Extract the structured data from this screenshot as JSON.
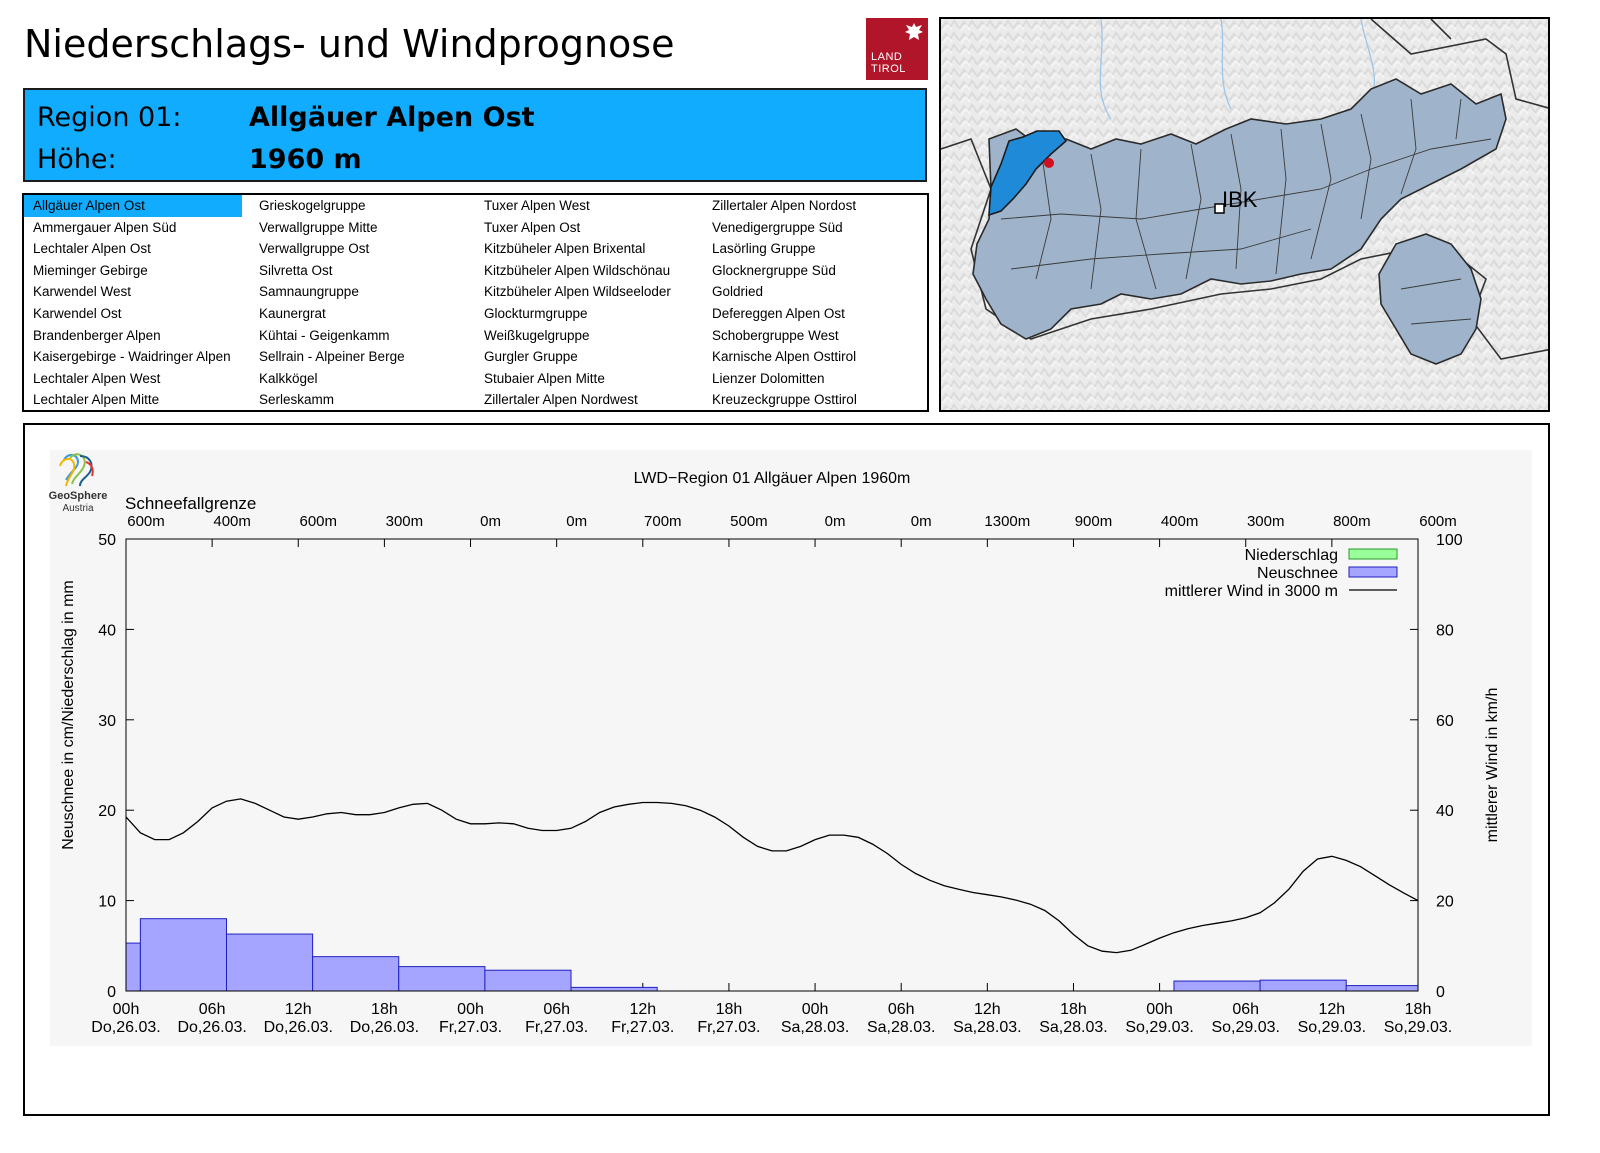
{
  "header": {
    "title": "Niederschlags- und Windprognose",
    "logo_line1": "LAND",
    "logo_line2": "TIROL"
  },
  "region": {
    "region_label": "Region 01:",
    "region_name": "Allgäuer Alpen Ost",
    "height_label": "Höhe:",
    "height_value": "1960 m"
  },
  "region_list": {
    "columns": [
      [
        "Allgäuer Alpen Ost",
        "Ammergauer Alpen Süd",
        "Lechtaler Alpen Ost",
        "Mieminger Gebirge",
        "Karwendel West",
        "Karwendel Ost",
        "Brandenberger Alpen",
        "Kaisergebirge - Waidringer Alpen",
        "Lechtaler Alpen West",
        "Lechtaler Alpen Mitte"
      ],
      [
        "Grieskogelgruppe",
        "Verwallgruppe Mitte",
        "Verwallgruppe Ost",
        "Silvretta Ost",
        "Samnaungruppe",
        "Kaunergrat",
        "Kühtai - Geigenkamm",
        "Sellrain - Alpeiner Berge",
        "Kalkkögel",
        "Serleskamm"
      ],
      [
        "Tuxer Alpen West",
        "Tuxer Alpen Ost",
        "Kitzbüheler Alpen Brixental",
        "Kitzbüheler Alpen Wildschönau",
        "Kitzbüheler Alpen Wildseeloder",
        "Glockturmgruppe",
        "Weißkugelgruppe",
        "Gurgler Gruppe",
        "Stubaier Alpen Mitte",
        "Zillertaler Alpen Nordwest"
      ],
      [
        "Zillertaler Alpen Nordost",
        "Venedigergruppe Süd",
        "Lasörling Gruppe",
        "Glocknergruppe Süd",
        "Goldried",
        "Defereggen Alpen Ost",
        "Schobergruppe West",
        "Karnische Alpen Osttirol",
        "Lienzer Dolomitten",
        "Kreuzeckgruppe Osttirol"
      ]
    ],
    "selected": "Allgäuer Alpen Ost"
  },
  "map": {
    "marker_label": "IBK"
  },
  "provider": {
    "name": "GeoSphere",
    "country": "Austria"
  },
  "colors": {
    "region_highlight": "#12acff",
    "precip": "#99ff99",
    "snow": "#a5a5ff",
    "snow_edge": "#2020c0",
    "wind": "#000000",
    "plot_bg": "#f6f6f6",
    "logo_red": "#b0152a"
  },
  "chart_data": {
    "type": "bar",
    "title": "LWD−Region 01 Allgäuer Alpen 1960m",
    "snowline_title": "Schneefallgrenze",
    "snowline_labels": [
      "600m",
      "400m",
      "600m",
      "300m",
      "0m",
      "0m",
      "700m",
      "500m",
      "0m",
      "0m",
      "1300m",
      "900m",
      "400m",
      "300m",
      "800m",
      "600m"
    ],
    "ylabel": "Neuschnee in cm/Niederschlag in mm",
    "y2label": "mittlerer Wind in km/h",
    "ylim": [
      0,
      50
    ],
    "y2lim": [
      0,
      100
    ],
    "yticks": [
      "0",
      "10",
      "20",
      "30",
      "40",
      "50"
    ],
    "y2ticks": [
      "0",
      "20",
      "40",
      "60",
      "80",
      "100"
    ],
    "x_hours_range": [
      0,
      90
    ],
    "x_tick_hours": [
      "00h",
      "06h",
      "12h",
      "18h",
      "00h",
      "06h",
      "12h",
      "18h",
      "00h",
      "06h",
      "12h",
      "18h",
      "00h",
      "06h",
      "12h",
      "18h"
    ],
    "x_tick_days": [
      "Do,26.03.",
      "Do,26.03.",
      "Do,26.03.",
      "Do,26.03.",
      "Fr,27.03.",
      "Fr,27.03.",
      "Fr,27.03.",
      "Fr,27.03.",
      "Sa,28.03.",
      "Sa,28.03.",
      "Sa,28.03.",
      "Sa,28.03.",
      "So,29.03.",
      "So,29.03.",
      "So,29.03.",
      "So,29.03."
    ],
    "legend": [
      "Niederschlag",
      "Neuschnee",
      "mittlerer Wind in 3000 m"
    ],
    "series": [
      {
        "name": "Neuschnee",
        "bars": [
          {
            "start": 0,
            "end": 1,
            "value": 5.3
          },
          {
            "start": 1,
            "end": 7,
            "value": 8.0
          },
          {
            "start": 7,
            "end": 13,
            "value": 6.3
          },
          {
            "start": 13,
            "end": 19,
            "value": 3.8
          },
          {
            "start": 19,
            "end": 25,
            "value": 2.7
          },
          {
            "start": 25,
            "end": 31,
            "value": 2.3
          },
          {
            "start": 31,
            "end": 37,
            "value": 0.4
          },
          {
            "start": 73,
            "end": 79,
            "value": 1.1
          },
          {
            "start": 79,
            "end": 85,
            "value": 1.2
          },
          {
            "start": 85,
            "end": 90,
            "value": 0.6
          }
        ]
      },
      {
        "name": "Niederschlag",
        "bars": []
      },
      {
        "name": "mittlerer Wind in 3000 m",
        "axis": "right",
        "x": [
          0,
          1,
          2,
          3,
          4,
          5,
          6,
          7,
          8,
          9,
          10,
          11,
          12,
          13,
          14,
          15,
          16,
          17,
          18,
          19,
          20,
          21,
          22,
          23,
          24,
          25,
          26,
          27,
          28,
          29,
          30,
          31,
          32,
          33,
          34,
          35,
          36,
          37,
          38,
          39,
          40,
          41,
          42,
          43,
          44,
          45,
          46,
          47,
          48,
          49,
          50,
          51,
          52,
          53,
          54,
          55,
          56,
          57,
          58,
          59,
          60,
          61,
          62,
          63,
          64,
          65,
          66,
          67,
          68,
          69,
          70,
          71,
          72,
          73,
          74,
          75,
          76,
          77,
          78,
          79,
          80,
          81,
          82,
          83,
          84,
          85,
          86,
          87,
          88,
          89,
          90
        ],
        "values": [
          38.5,
          35.0,
          33.5,
          33.5,
          35.0,
          37.5,
          40.5,
          42.0,
          42.5,
          41.5,
          40.0,
          38.5,
          38.0,
          38.5,
          39.2,
          39.5,
          39.0,
          39.0,
          39.5,
          40.5,
          41.3,
          41.5,
          40.0,
          38.0,
          37.0,
          37.0,
          37.2,
          37.0,
          36.0,
          35.5,
          35.5,
          36.0,
          37.5,
          39.5,
          40.7,
          41.3,
          41.7,
          41.7,
          41.5,
          41.0,
          40.0,
          38.5,
          36.5,
          34.0,
          32.0,
          31.0,
          31.0,
          32.0,
          33.5,
          34.5,
          34.5,
          34.0,
          32.5,
          30.5,
          28.0,
          26.0,
          24.5,
          23.3,
          22.5,
          21.8,
          21.3,
          20.8,
          20.1,
          19.2,
          17.8,
          15.5,
          12.5,
          10.0,
          8.8,
          8.5,
          9.0,
          10.3,
          11.7,
          12.9,
          13.8,
          14.5,
          15.0,
          15.5,
          16.2,
          17.3,
          19.5,
          22.5,
          26.5,
          29.2,
          29.8,
          28.9,
          27.5,
          25.5,
          23.5,
          21.7,
          20.0
        ]
      }
    ]
  }
}
